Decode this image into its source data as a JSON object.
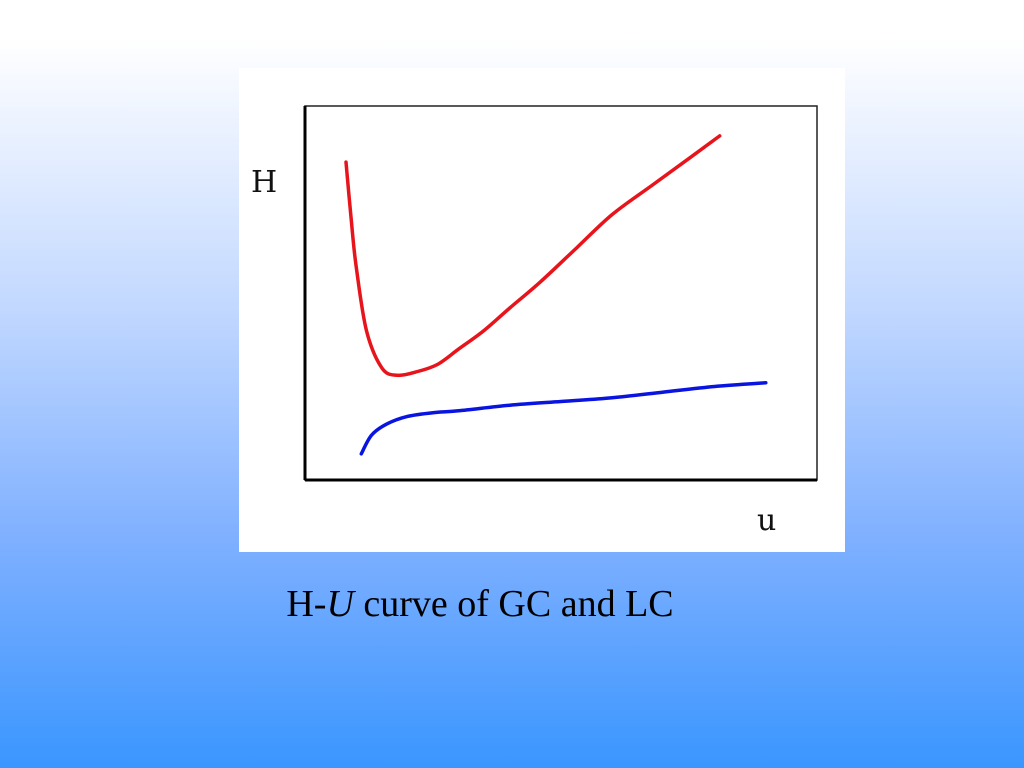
{
  "caption": {
    "prefix": "H-",
    "italic_part": "U",
    "suffix": " curve of GC and LC"
  },
  "chart_data": {
    "type": "line",
    "title": "",
    "xlabel": "u",
    "ylabel": "H",
    "xlim": [
      0,
      10
    ],
    "ylim": [
      0,
      10
    ],
    "grid": false,
    "legend": "none",
    "series": [
      {
        "color": "#e8141c",
        "x": [
          0.8,
          0.9,
          1.0,
          1.2,
          1.5,
          1.8,
          2.2,
          2.6,
          3.0,
          3.5,
          4.0,
          4.6,
          5.3,
          6.0,
          6.8,
          7.5,
          8.1
        ],
        "y": [
          8.5,
          7.0,
          5.7,
          4.0,
          3.0,
          2.8,
          2.9,
          3.1,
          3.5,
          4.0,
          4.6,
          5.3,
          6.2,
          7.1,
          7.9,
          8.6,
          9.2
        ]
      },
      {
        "color": "#0a14e0",
        "x": [
          1.1,
          1.3,
          1.6,
          2.0,
          2.5,
          3.0,
          4.0,
          5.0,
          6.0,
          7.0,
          8.0,
          9.0
        ],
        "y": [
          0.7,
          1.2,
          1.5,
          1.7,
          1.8,
          1.85,
          2.0,
          2.1,
          2.2,
          2.35,
          2.5,
          2.6
        ]
      }
    ]
  }
}
